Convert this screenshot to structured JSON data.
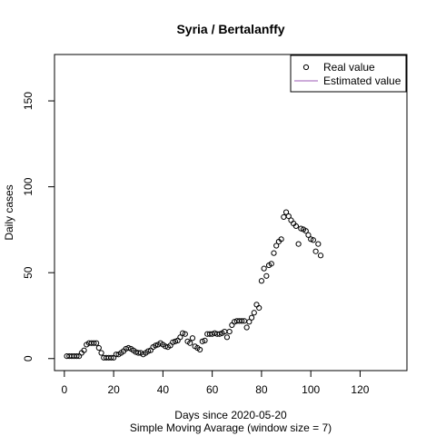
{
  "chart_data": {
    "type": "scatter",
    "title": "Syria / Bertalanffy",
    "xlabel": "Days since 2020-05-20",
    "xlabel2": "Simple Moving Avarage (window size = 7)",
    "ylabel": "Daily cases",
    "xlim": [
      -4,
      139
    ],
    "ylim": [
      -7,
      177
    ],
    "xticks": [
      0,
      20,
      40,
      60,
      80,
      100,
      120
    ],
    "yticks": [
      0,
      50,
      100,
      150
    ],
    "grid": false,
    "legend_position": "top-right",
    "legend": [
      "Real value",
      "Estimated value"
    ],
    "colors": {
      "real": "#000000",
      "estimated": "#9b59b6"
    },
    "series": [
      {
        "name": "Real value",
        "marker": "open-circle",
        "x": [
          1,
          2,
          3,
          4,
          5,
          6,
          7,
          8,
          9,
          10,
          11,
          12,
          13,
          14,
          15,
          16,
          17,
          18,
          19,
          20,
          21,
          22,
          23,
          24,
          25,
          26,
          27,
          28,
          29,
          30,
          31,
          32,
          33,
          34,
          35,
          36,
          37,
          38,
          39,
          40,
          41,
          42,
          43,
          44,
          45,
          46,
          47,
          48,
          49,
          50,
          51,
          52,
          53,
          54,
          55,
          56,
          57,
          58,
          59,
          60,
          61,
          62,
          63,
          64,
          65,
          66,
          67,
          68,
          69,
          70,
          71,
          72,
          73,
          74,
          75,
          76,
          77,
          78,
          79,
          80,
          81,
          82,
          83,
          84,
          85,
          86,
          87,
          88,
          89,
          90,
          91,
          92,
          93,
          94,
          95,
          96,
          97,
          98,
          99,
          100,
          101,
          102,
          103,
          104
        ],
        "y": [
          1.4,
          1.4,
          1.4,
          1.4,
          1.4,
          1.4,
          3.3,
          4.8,
          8.1,
          9.0,
          9.0,
          9.0,
          9.0,
          6.2,
          3.3,
          0.5,
          0.5,
          0.5,
          0.5,
          0.5,
          2.4,
          2.4,
          3.3,
          4.3,
          5.7,
          6.2,
          5.7,
          4.8,
          3.8,
          3.3,
          3.3,
          2.4,
          3.3,
          4.3,
          4.8,
          6.7,
          7.6,
          8.1,
          9.0,
          8.1,
          7.1,
          6.7,
          7.6,
          9.5,
          10.0,
          10.5,
          12.4,
          14.8,
          14.3,
          10.0,
          9.0,
          11.9,
          7.1,
          6.2,
          5.2,
          10.0,
          10.5,
          14.3,
          14.3,
          14.3,
          14.8,
          14.3,
          14.3,
          14.8,
          15.7,
          12.4,
          15.7,
          19.5,
          21.4,
          21.9,
          21.9,
          21.9,
          21.9,
          18.1,
          21.4,
          23.8,
          26.7,
          31.4,
          29.5,
          45.2,
          52.4,
          48.1,
          54.3,
          55.2,
          61.4,
          65.7,
          68.1,
          69.5,
          82.4,
          85.2,
          82.9,
          80.5,
          78.6,
          77.1,
          66.7,
          75.7,
          75.2,
          74.3,
          71.9,
          69.5,
          69.0,
          62.4,
          66.7,
          60.0
        ]
      },
      {
        "name": "Estimated value",
        "marker": "line",
        "x": [],
        "y": []
      }
    ]
  }
}
